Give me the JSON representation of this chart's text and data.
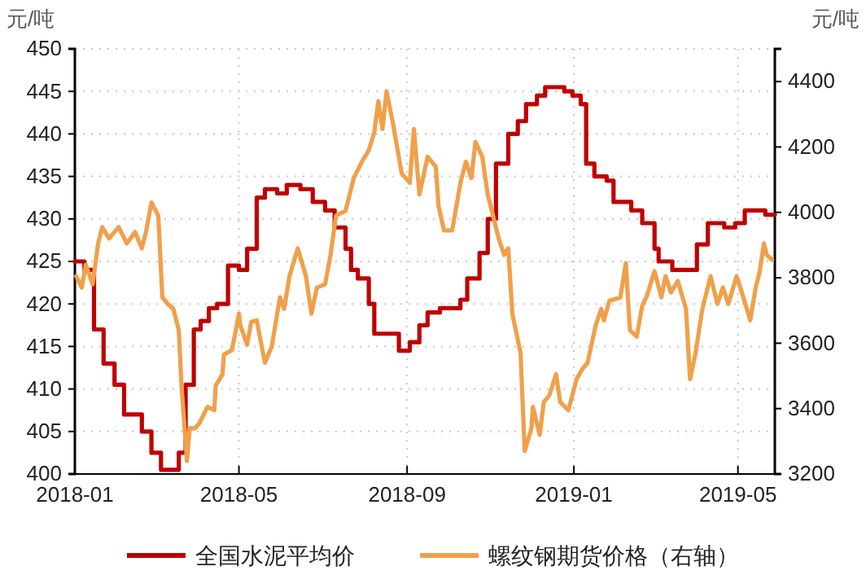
{
  "chart_data": {
    "type": "line",
    "ylabel": "元/吨",
    "y2label": "元/吨",
    "xlim": [
      "2018-01-01",
      "2019-05-28"
    ],
    "xticks": [
      {
        "value": "2018-01-01",
        "label": "2018-01"
      },
      {
        "value": "2018-05-01",
        "label": "2018-05"
      },
      {
        "value": "2018-09-01",
        "label": "2018-09"
      },
      {
        "value": "2019-01-01",
        "label": "2019-01"
      },
      {
        "value": "2019-05-01",
        "label": "2019-05"
      }
    ],
    "ylim": [
      400,
      450
    ],
    "yticks": [
      400,
      405,
      410,
      415,
      420,
      425,
      430,
      435,
      440,
      445,
      450
    ],
    "y2lim": [
      3200,
      4500
    ],
    "y2ticks": [
      3200,
      3400,
      3600,
      3800,
      4000,
      4200,
      4400
    ],
    "grid": true,
    "legend": "bottom",
    "series": [
      {
        "name": "全国水泥平均价",
        "type": "step",
        "color": "#c00000",
        "x": [
          "2018-01-01",
          "2018-01-08",
          "2018-01-15",
          "2018-01-22",
          "2018-01-30",
          "2018-02-06",
          "2018-02-19",
          "2018-02-26",
          "2018-03-05",
          "2018-03-18",
          "2018-03-23",
          "2018-03-29",
          "2018-04-03",
          "2018-04-09",
          "2018-04-15",
          "2018-04-23",
          "2018-05-01",
          "2018-05-07",
          "2018-05-14",
          "2018-05-20",
          "2018-05-29",
          "2018-06-05",
          "2018-06-15",
          "2018-06-24",
          "2018-07-03",
          "2018-07-10",
          "2018-07-18",
          "2018-07-22",
          "2018-07-27",
          "2018-08-04",
          "2018-08-08",
          "2018-08-26",
          "2018-09-03",
          "2018-09-10",
          "2018-09-16",
          "2018-09-25",
          "2018-10-10",
          "2018-10-15",
          "2018-10-24",
          "2018-10-30",
          "2018-11-05",
          "2018-11-14",
          "2018-11-21",
          "2018-11-27",
          "2018-12-05",
          "2018-12-11",
          "2018-12-25",
          "2018-12-31",
          "2019-01-06",
          "2019-01-10",
          "2019-01-16",
          "2019-01-25",
          "2019-01-30",
          "2019-02-12",
          "2019-02-20",
          "2019-03-01",
          "2019-03-04",
          "2019-03-14",
          "2019-04-01",
          "2019-04-09",
          "2019-04-21",
          "2019-04-29",
          "2019-05-06",
          "2019-05-15",
          "2019-05-21",
          "2019-05-28"
        ],
        "values": [
          425,
          424,
          417,
          413,
          410.5,
          407,
          405,
          402.5,
          400.5,
          402.5,
          410.5,
          417,
          418,
          419.5,
          420,
          424.5,
          424,
          426.5,
          432.5,
          433.5,
          433,
          434,
          433.5,
          432,
          431,
          429,
          426.5,
          424,
          423,
          420,
          416.5,
          414.5,
          415.5,
          417.5,
          419,
          419.5,
          420.5,
          423,
          426,
          430,
          436.5,
          440,
          441.5,
          443.5,
          444.5,
          445.5,
          445,
          444.5,
          443.5,
          436.5,
          435,
          434.5,
          432,
          431,
          429.5,
          426.5,
          425,
          424,
          427,
          429.5,
          429,
          429.5,
          431,
          431,
          430.5,
          430.5
        ]
      },
      {
        "name": "螺纹钢期货价格（右轴）",
        "type": "line",
        "axis": "y2",
        "color": "#f0a04b",
        "x": [
          "2018-01-02",
          "2018-01-06",
          "2018-01-09",
          "2018-01-14",
          "2018-01-18",
          "2018-01-21",
          "2018-01-26",
          "2018-02-02",
          "2018-02-08",
          "2018-02-14",
          "2018-02-19",
          "2018-02-22",
          "2018-02-26",
          "2018-03-03",
          "2018-03-06",
          "2018-03-10",
          "2018-03-14",
          "2018-03-18",
          "2018-03-20",
          "2018-03-24",
          "2018-03-26",
          "2018-03-30",
          "2018-04-02",
          "2018-04-08",
          "2018-04-13",
          "2018-04-14",
          "2018-04-19",
          "2018-04-20",
          "2018-04-26",
          "2018-05-01",
          "2018-05-02",
          "2018-05-07",
          "2018-05-10",
          "2018-05-14",
          "2018-05-20",
          "2018-05-25",
          "2018-05-31",
          "2018-06-03",
          "2018-06-07",
          "2018-06-13",
          "2018-06-19",
          "2018-06-23",
          "2018-06-27",
          "2018-07-03",
          "2018-07-07",
          "2018-07-11",
          "2018-07-18",
          "2018-07-24",
          "2018-07-30",
          "2018-08-04",
          "2018-08-08",
          "2018-08-11",
          "2018-08-14",
          "2018-08-17",
          "2018-08-22",
          "2018-08-28",
          "2018-09-03",
          "2018-09-06",
          "2018-09-10",
          "2018-09-16",
          "2018-09-22",
          "2018-09-24",
          "2018-09-28",
          "2018-10-04",
          "2018-10-10",
          "2018-10-14",
          "2018-10-18",
          "2018-10-21",
          "2018-10-26",
          "2018-10-30",
          "2018-11-07",
          "2018-11-11",
          "2018-11-14",
          "2018-11-17",
          "2018-11-23",
          "2018-11-26",
          "2018-12-01",
          "2018-12-02",
          "2018-12-07",
          "2018-12-10",
          "2018-12-14",
          "2018-12-19",
          "2018-12-22",
          "2018-12-28",
          "2019-01-03",
          "2019-01-07",
          "2019-01-11",
          "2019-01-17",
          "2019-01-21",
          "2019-01-23",
          "2019-01-27",
          "2019-02-04",
          "2019-02-08",
          "2019-02-11",
          "2019-02-16",
          "2019-02-20",
          "2019-02-23",
          "2019-03-01",
          "2019-03-06",
          "2019-03-09",
          "2019-03-13",
          "2019-03-18",
          "2019-03-24",
          "2019-03-27",
          "2019-03-31",
          "2019-04-05",
          "2019-04-11",
          "2019-04-16",
          "2019-04-20",
          "2019-04-24",
          "2019-04-30",
          "2019-05-05",
          "2019-05-10",
          "2019-05-14",
          "2019-05-17",
          "2019-05-20",
          "2019-05-22",
          "2019-05-26"
        ],
        "values": [
          3805,
          3770,
          3840,
          3780,
          3905,
          3955,
          3920,
          3955,
          3905,
          3940,
          3890,
          3940,
          4030,
          3990,
          3740,
          3720,
          3705,
          3640,
          3470,
          3240,
          3340,
          3340,
          3355,
          3405,
          3395,
          3470,
          3505,
          3565,
          3580,
          3690,
          3655,
          3595,
          3665,
          3670,
          3540,
          3590,
          3740,
          3705,
          3805,
          3890,
          3805,
          3690,
          3770,
          3780,
          3870,
          3990,
          4005,
          4105,
          4155,
          4190,
          4245,
          4340,
          4255,
          4370,
          4265,
          4120,
          4090,
          4255,
          4055,
          4170,
          4140,
          4020,
          3945,
          3945,
          4090,
          4155,
          4105,
          4215,
          4170,
          4055,
          3920,
          3870,
          3890,
          3690,
          3570,
          3270,
          3340,
          3405,
          3320,
          3420,
          3440,
          3505,
          3420,
          3395,
          3490,
          3520,
          3540,
          3655,
          3705,
          3670,
          3730,
          3740,
          3845,
          3640,
          3620,
          3715,
          3740,
          3820,
          3740,
          3805,
          3755,
          3790,
          3705,
          3490,
          3570,
          3705,
          3805,
          3720,
          3770,
          3720,
          3805,
          3740,
          3670,
          3770,
          3820,
          3905,
          3870,
          3855
        ]
      }
    ]
  }
}
